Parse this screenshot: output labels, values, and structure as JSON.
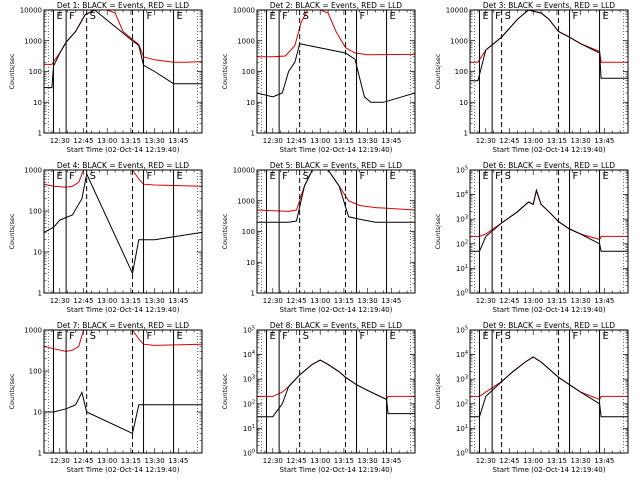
{
  "colors": {
    "events": "#000000",
    "lld": "#e00000",
    "axis": "#000000"
  },
  "chart_data": [
    {
      "type": "line",
      "title": "Det 1: BLACK = Events, RED = LLD",
      "xlabel": "Start Time (02-Oct-14 12:19:40)",
      "ylabel": "Counts/sec",
      "scale": "log",
      "ylim": [
        1,
        10000
      ],
      "yticks": [
        "1",
        "10",
        "100",
        "1000",
        "10000"
      ],
      "xlim": [
        "12:20",
        "14:00"
      ],
      "xticks": [
        "12:30",
        "12:45",
        "13:00",
        "13:15",
        "13:30",
        "13:45"
      ],
      "markers": {
        "solid": [
          "12:26",
          "12:34",
          "13:23",
          "13:42"
        ],
        "dashed": [
          "12:47",
          "13:16"
        ],
        "labels": [
          "E",
          "F",
          "S",
          "F",
          "E"
        ]
      },
      "series": [
        {
          "color": "red",
          "x": [
            "12:20",
            "12:25",
            "12:26",
            "12:30",
            "12:34",
            "12:40",
            "12:46",
            "12:52",
            "13:00",
            "13:05",
            "13:10",
            "13:16",
            "13:20",
            "13:23",
            "13:30",
            "13:36",
            "13:42",
            "13:50",
            "14:00"
          ],
          "y": [
            170,
            170,
            210,
            400,
            900,
            2000,
            7000,
            10000,
            10000,
            8000,
            2000,
            1100,
            750,
            300,
            240,
            220,
            200,
            200,
            210
          ]
        },
        {
          "color": "black",
          "x": [
            "12:20",
            "12:25",
            "12:26",
            "12:30",
            "12:34",
            "12:40",
            "12:46",
            "12:52",
            "13:16",
            "13:20",
            "13:23",
            "13:30",
            "13:42",
            "13:50",
            "14:00"
          ],
          "y": [
            30,
            30,
            150,
            400,
            900,
            2000,
            7000,
            10000,
            1000,
            700,
            160,
            100,
            40,
            40,
            40
          ]
        }
      ]
    },
    {
      "type": "line",
      "title": "Det 2: BLACK = Events, RED = LLD",
      "xlabel": "Start Time (02-Oct-14 12:19:40)",
      "ylabel": "Counts/sec",
      "scale": "log",
      "ylim": [
        1,
        10000
      ],
      "yticks": [
        "1",
        "10",
        "100",
        "1000",
        "10000"
      ],
      "xlim": [
        "12:20",
        "14:00"
      ],
      "xticks": [
        "12:30",
        "12:45",
        "13:00",
        "13:15",
        "13:30",
        "13:45"
      ],
      "markers": {
        "solid": [
          "12:26",
          "12:34",
          "13:23",
          "13:42"
        ],
        "dashed": [
          "12:47",
          "13:16"
        ],
        "labels": [
          "E",
          "F",
          "S",
          "F",
          "E"
        ]
      },
      "series": [
        {
          "color": "red",
          "x": [
            "12:20",
            "12:30",
            "12:38",
            "12:44",
            "12:48",
            "12:52",
            "13:00",
            "13:05",
            "13:10",
            "13:16",
            "13:22",
            "13:30",
            "14:00"
          ],
          "y": [
            300,
            300,
            320,
            700,
            4000,
            10000,
            10000,
            8000,
            2000,
            600,
            400,
            350,
            360
          ]
        },
        {
          "color": "black",
          "x": [
            "12:20",
            "12:30",
            "12:36",
            "12:40",
            "12:44",
            "12:47",
            "13:16",
            "13:22",
            "13:25",
            "13:28",
            "13:32",
            "13:40",
            "14:00"
          ],
          "y": [
            20,
            15,
            20,
            100,
            200,
            800,
            400,
            250,
            60,
            15,
            10,
            10,
            20
          ]
        }
      ]
    },
    {
      "type": "line",
      "title": "Det 3: BLACK = Events, RED = LLD",
      "xlabel": "Start Time (02-Oct-14 12:19:40)",
      "ylabel": "Counts/sec",
      "scale": "log",
      "ylim": [
        1,
        10000
      ],
      "yticks": [
        "1",
        "10",
        "100",
        "1000",
        "10000"
      ],
      "xlim": [
        "12:20",
        "14:00"
      ],
      "xticks": [
        "12:30",
        "12:45",
        "13:00",
        "13:15",
        "13:30",
        "13:45"
      ],
      "markers": {
        "solid": [
          "12:26",
          "12:34",
          "13:23",
          "13:42"
        ],
        "dashed": [
          "12:40",
          "13:16"
        ],
        "labels": [
          "E",
          "F",
          "S",
          "F",
          "E"
        ]
      },
      "series": [
        {
          "color": "red",
          "x": [
            "12:20",
            "12:25",
            "12:30",
            "12:40",
            "12:50",
            "12:57",
            "13:05",
            "13:10",
            "13:16",
            "13:23",
            "13:30",
            "13:42",
            "13:43",
            "14:00"
          ],
          "y": [
            200,
            200,
            500,
            1300,
            5000,
            10000,
            8000,
            5000,
            2000,
            1300,
            800,
            450,
            200,
            200
          ]
        },
        {
          "color": "black",
          "x": [
            "12:20",
            "12:25",
            "12:30",
            "12:40",
            "12:50",
            "12:57",
            "13:05",
            "13:10",
            "13:16",
            "13:23",
            "13:30",
            "13:42",
            "13:43",
            "14:00"
          ],
          "y": [
            50,
            50,
            500,
            1300,
            5000,
            10000,
            8000,
            5000,
            2000,
            1300,
            800,
            400,
            60,
            60
          ]
        }
      ]
    },
    {
      "type": "line",
      "title": "Det 4: BLACK = Events, RED = LLD",
      "xlabel": "Start Time (02-Oct-14 12:19:40)",
      "ylabel": "Counts/sec",
      "scale": "log",
      "ylim": [
        1,
        1000
      ],
      "yticks": [
        "1",
        "10",
        "100",
        "1000"
      ],
      "xlim": [
        "12:20",
        "14:00"
      ],
      "xticks": [
        "12:30",
        "12:45",
        "13:00",
        "13:15",
        "13:30",
        "13:45"
      ],
      "markers": {
        "solid": [
          "12:26",
          "12:34",
          "13:23",
          "13:42"
        ],
        "dashed": [
          "12:47",
          "13:16"
        ],
        "labels": [
          "E",
          "F",
          "S",
          "F",
          "E"
        ]
      },
      "series": [
        {
          "color": "red",
          "x": [
            "12:20",
            "12:26",
            "12:34",
            "12:38",
            "12:42",
            "12:45",
            "13:16",
            "13:20",
            "13:23",
            "13:30",
            "14:00"
          ],
          "y": [
            450,
            400,
            380,
            400,
            500,
            1000,
            1000,
            600,
            450,
            430,
            400
          ]
        },
        {
          "color": "black",
          "x": [
            "12:20",
            "12:26",
            "12:30",
            "12:38",
            "12:44",
            "12:47",
            "13:16",
            "13:20",
            "13:23",
            "13:30",
            "14:00"
          ],
          "y": [
            30,
            40,
            60,
            80,
            200,
            800,
            3,
            20,
            20,
            20,
            30
          ]
        }
      ]
    },
    {
      "type": "line",
      "title": "Det 5: BLACK = Events, RED = LLD",
      "xlabel": "Start Time (02-Oct-14 12:19:40)",
      "ylabel": "Counts/sec",
      "scale": "log",
      "ylim": [
        1,
        10000
      ],
      "yticks": [
        "1",
        "10",
        "100",
        "1000",
        "10000"
      ],
      "xlim": [
        "12:20",
        "14:00"
      ],
      "xticks": [
        "12:30",
        "12:45",
        "13:00",
        "13:15",
        "13:30",
        "13:45"
      ],
      "markers": {
        "solid": [
          "12:26",
          "12:34",
          "13:23",
          "13:42"
        ],
        "dashed": [
          "12:47",
          "13:16"
        ],
        "labels": [
          "E",
          "F",
          "S",
          "F",
          "E"
        ]
      },
      "series": [
        {
          "color": "red",
          "x": [
            "12:20",
            "12:40",
            "12:45",
            "12:50",
            "12:55",
            "13:05",
            "13:12",
            "13:18",
            "13:25",
            "13:35",
            "14:00"
          ],
          "y": [
            500,
            450,
            500,
            3000,
            10000,
            10000,
            3000,
            1000,
            700,
            600,
            500
          ]
        },
        {
          "color": "black",
          "x": [
            "12:20",
            "12:40",
            "12:45",
            "12:50",
            "12:55",
            "13:05",
            "13:12",
            "13:18",
            "13:25",
            "13:35",
            "14:00"
          ],
          "y": [
            200,
            200,
            220,
            3000,
            10000,
            10000,
            3000,
            300,
            250,
            200,
            200
          ]
        }
      ]
    },
    {
      "type": "line",
      "title": "Det 6: BLACK = Events, RED = LLD",
      "xlabel": "Start Time (02-Oct-14 12:19:40)",
      "ylabel": "Counts/sec",
      "scale": "log",
      "ylim": [
        1,
        100000
      ],
      "yticks": [
        "10^0",
        "10^1",
        "10^2",
        "10^3",
        "10^4",
        "10^5"
      ],
      "xlim": [
        "12:20",
        "14:00"
      ],
      "xticks": [
        "12:30",
        "12:45",
        "13:00",
        "13:15",
        "13:30",
        "13:45"
      ],
      "markers": {
        "solid": [
          "12:26",
          "12:34",
          "13:23",
          "13:42"
        ],
        "dashed": [
          "12:40",
          "13:16"
        ],
        "labels": [
          "E",
          "F",
          "S",
          "F",
          "E"
        ]
      },
      "series": [
        {
          "color": "red",
          "x": [
            "12:20",
            "12:26",
            "12:30",
            "12:40",
            "12:50",
            "12:57",
            "13:00",
            "13:02",
            "13:05",
            "13:10",
            "13:16",
            "13:23",
            "13:30",
            "13:42",
            "13:43",
            "14:00"
          ],
          "y": [
            200,
            200,
            250,
            700,
            2000,
            5000,
            4000,
            15000,
            4000,
            2000,
            800,
            400,
            250,
            150,
            200,
            200
          ]
        },
        {
          "color": "black",
          "x": [
            "12:20",
            "12:26",
            "12:30",
            "12:40",
            "12:50",
            "12:57",
            "13:00",
            "13:02",
            "13:05",
            "13:10",
            "13:16",
            "13:23",
            "13:30",
            "13:42",
            "13:43",
            "14:00"
          ],
          "y": [
            50,
            50,
            200,
            700,
            2000,
            5000,
            4000,
            15000,
            4000,
            2000,
            800,
            400,
            250,
            100,
            50,
            50
          ]
        }
      ]
    },
    {
      "type": "line",
      "title": "Det 7: BLACK = Events, RED = LLD",
      "xlabel": "Start Time (02-Oct-14 12:19:40)",
      "ylabel": "Counts/sec",
      "scale": "log",
      "ylim": [
        1,
        1000
      ],
      "yticks": [
        "1",
        "10",
        "100",
        "1000"
      ],
      "xlim": [
        "12:20",
        "14:00"
      ],
      "xticks": [
        "12:30",
        "12:45",
        "13:00",
        "13:15",
        "13:30",
        "13:45"
      ],
      "markers": {
        "solid": [
          "12:26",
          "12:34",
          "13:23",
          "13:42"
        ],
        "dashed": [
          "12:47",
          "13:16"
        ],
        "labels": [
          "E",
          "F",
          "S",
          "F",
          "E"
        ]
      },
      "series": [
        {
          "color": "red",
          "x": [
            "12:20",
            "12:26",
            "12:34",
            "12:38",
            "12:42",
            "12:45",
            "13:16",
            "13:20",
            "13:23",
            "13:30",
            "14:00"
          ],
          "y": [
            400,
            350,
            300,
            320,
            400,
            1000,
            1000,
            600,
            450,
            420,
            450
          ]
        },
        {
          "color": "black",
          "x": [
            "12:20",
            "12:26",
            "12:34",
            "12:40",
            "12:44",
            "12:47",
            "13:16",
            "13:20",
            "13:23",
            "13:30",
            "14:00"
          ],
          "y": [
            10,
            10,
            12,
            15,
            30,
            10,
            3,
            15,
            15,
            15,
            15
          ]
        }
      ]
    },
    {
      "type": "line",
      "title": "Det 8: BLACK = Events, RED = LLD",
      "xlabel": "Start Time (02-Oct-14 12:19:40)",
      "ylabel": "Counts/sec",
      "scale": "log",
      "ylim": [
        1,
        100000
      ],
      "yticks": [
        "10^0",
        "10^1",
        "10^2",
        "10^3",
        "10^4",
        "10^5"
      ],
      "xlim": [
        "12:20",
        "14:00"
      ],
      "xticks": [
        "12:30",
        "12:45",
        "13:00",
        "13:15",
        "13:30",
        "13:45"
      ],
      "markers": {
        "solid": [
          "12:26",
          "12:34",
          "13:23",
          "13:42"
        ],
        "dashed": [
          "12:47",
          "13:16"
        ],
        "labels": [
          "E",
          "F",
          "S",
          "F",
          "E"
        ]
      },
      "series": [
        {
          "color": "red",
          "x": [
            "12:20",
            "12:30",
            "12:36",
            "12:40",
            "12:47",
            "12:55",
            "13:00",
            "13:05",
            "13:12",
            "13:16",
            "13:23",
            "13:30",
            "13:42",
            "13:43",
            "14:00"
          ],
          "y": [
            200,
            200,
            300,
            500,
            1500,
            4000,
            6000,
            4000,
            2000,
            1200,
            600,
            350,
            150,
            200,
            200
          ]
        },
        {
          "color": "black",
          "x": [
            "12:20",
            "12:30",
            "12:36",
            "12:40",
            "12:47",
            "12:55",
            "13:00",
            "13:05",
            "13:12",
            "13:16",
            "13:23",
            "13:30",
            "13:42",
            "13:43",
            "14:00"
          ],
          "y": [
            30,
            30,
            100,
            500,
            1500,
            4000,
            6000,
            4000,
            2000,
            1200,
            600,
            350,
            150,
            40,
            40
          ]
        }
      ]
    },
    {
      "type": "line",
      "title": "Det 9: BLACK = Events, RED = LLD",
      "xlabel": "Start Time (02-Oct-14 12:19:40)",
      "ylabel": "Counts/sec",
      "scale": "log",
      "ylim": [
        1,
        100000
      ],
      "yticks": [
        "10^0",
        "10^1",
        "10^2",
        "10^3",
        "10^4",
        "10^5"
      ],
      "xlim": [
        "12:20",
        "14:00"
      ],
      "xticks": [
        "12:30",
        "12:45",
        "13:00",
        "13:15",
        "13:30",
        "13:45"
      ],
      "markers": {
        "solid": [
          "12:26",
          "12:34",
          "13:23",
          "13:42"
        ],
        "dashed": [
          "12:40",
          "13:16"
        ],
        "labels": [
          "E",
          "F",
          "S",
          "F",
          "E"
        ]
      },
      "series": [
        {
          "color": "red",
          "x": [
            "12:20",
            "12:26",
            "12:30",
            "12:40",
            "12:47",
            "12:55",
            "13:00",
            "13:05",
            "13:12",
            "13:16",
            "13:23",
            "13:30",
            "13:42",
            "13:43",
            "14:00"
          ],
          "y": [
            200,
            200,
            300,
            800,
            2000,
            5000,
            8000,
            5000,
            2000,
            1200,
            600,
            300,
            150,
            200,
            200
          ]
        },
        {
          "color": "black",
          "x": [
            "12:20",
            "12:26",
            "12:30",
            "12:40",
            "12:47",
            "12:55",
            "13:00",
            "13:05",
            "13:12",
            "13:16",
            "13:23",
            "13:30",
            "13:42",
            "13:43",
            "14:00"
          ],
          "y": [
            30,
            30,
            200,
            800,
            2000,
            5000,
            8000,
            5000,
            2000,
            1200,
            600,
            300,
            100,
            30,
            30
          ]
        }
      ]
    }
  ]
}
